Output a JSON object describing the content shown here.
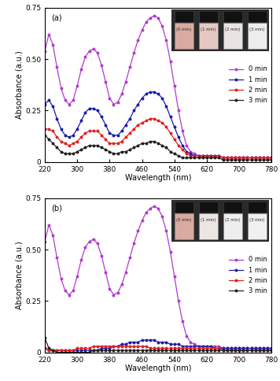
{
  "chart_data": [
    {
      "type": "line",
      "panel_label": "(a)",
      "x_label": "Wavelength (nm)",
      "y_label": "Absorbance (a.u.)",
      "inset_labels": [
        "(0 min)",
        "(1 min)",
        "(2 min)",
        "(3 min)"
      ],
      "x": [
        220,
        230,
        240,
        250,
        260,
        270,
        280,
        290,
        300,
        310,
        320,
        330,
        340,
        350,
        360,
        370,
        380,
        390,
        400,
        410,
        420,
        430,
        440,
        450,
        460,
        470,
        480,
        490,
        500,
        510,
        520,
        530,
        540,
        550,
        560,
        570,
        580,
        590,
        600,
        610,
        620,
        630,
        640,
        650,
        660,
        670,
        680,
        690,
        700,
        710,
        720,
        730,
        740,
        750,
        760,
        770,
        780
      ],
      "xlim": [
        220,
        780
      ],
      "xticks": [
        220,
        300,
        380,
        460,
        540,
        620,
        700,
        780
      ],
      "ylim": [
        0,
        0.75
      ],
      "yticks": [
        0,
        0.25,
        {
          "value": 0.5,
          "label": "0.50"
        },
        0.75
      ],
      "legend": "center right",
      "marker": "o",
      "line_style": "-",
      "series": [
        {
          "name": "0 min",
          "color": "#b03cc8",
          "values": [
            0.54,
            0.62,
            0.57,
            0.46,
            0.36,
            0.3,
            0.28,
            0.3,
            0.37,
            0.45,
            0.51,
            0.54,
            0.55,
            0.53,
            0.47,
            0.39,
            0.31,
            0.28,
            0.29,
            0.33,
            0.39,
            0.46,
            0.53,
            0.59,
            0.64,
            0.68,
            0.7,
            0.71,
            0.7,
            0.66,
            0.59,
            0.49,
            0.37,
            0.25,
            0.15,
            0.08,
            0.05,
            0.04,
            0.03,
            0.03,
            0.03,
            0.03,
            0.03,
            0.03,
            0.02,
            0.02,
            0.02,
            0.02,
            0.02,
            0.02,
            0.02,
            0.02,
            0.02,
            0.02,
            0.02,
            0.02,
            0.02
          ]
        },
        {
          "name": "1 min",
          "color": "#1c1ca8",
          "values": [
            0.28,
            0.3,
            0.27,
            0.21,
            0.16,
            0.13,
            0.12,
            0.13,
            0.16,
            0.2,
            0.24,
            0.26,
            0.26,
            0.25,
            0.22,
            0.18,
            0.14,
            0.13,
            0.13,
            0.15,
            0.18,
            0.21,
            0.25,
            0.28,
            0.31,
            0.33,
            0.34,
            0.34,
            0.33,
            0.31,
            0.27,
            0.22,
            0.17,
            0.12,
            0.08,
            0.05,
            0.04,
            0.03,
            0.03,
            0.03,
            0.03,
            0.03,
            0.03,
            0.03,
            0.02,
            0.02,
            0.02,
            0.02,
            0.02,
            0.02,
            0.02,
            0.02,
            0.02,
            0.02,
            0.02,
            0.02,
            0.02
          ]
        },
        {
          "name": "2 min",
          "color": "#e02020",
          "values": [
            0.16,
            0.16,
            0.15,
            0.12,
            0.1,
            0.09,
            0.08,
            0.09,
            0.1,
            0.12,
            0.14,
            0.15,
            0.15,
            0.15,
            0.13,
            0.11,
            0.09,
            0.09,
            0.09,
            0.1,
            0.12,
            0.14,
            0.16,
            0.18,
            0.19,
            0.2,
            0.21,
            0.21,
            0.2,
            0.19,
            0.17,
            0.14,
            0.11,
            0.08,
            0.06,
            0.04,
            0.03,
            0.03,
            0.03,
            0.03,
            0.03,
            0.03,
            0.03,
            0.03,
            0.02,
            0.02,
            0.02,
            0.02,
            0.02,
            0.02,
            0.02,
            0.02,
            0.02,
            0.02,
            0.02,
            0.02,
            0.02
          ]
        },
        {
          "name": "3 min",
          "color": "#202020",
          "values": [
            0.13,
            0.11,
            0.09,
            0.07,
            0.05,
            0.04,
            0.04,
            0.04,
            0.05,
            0.06,
            0.07,
            0.08,
            0.08,
            0.08,
            0.07,
            0.06,
            0.05,
            0.04,
            0.04,
            0.05,
            0.05,
            0.06,
            0.07,
            0.08,
            0.09,
            0.09,
            0.1,
            0.1,
            0.09,
            0.08,
            0.07,
            0.05,
            0.04,
            0.03,
            0.02,
            0.02,
            0.02,
            0.02,
            0.02,
            0.02,
            0.02,
            0.02,
            0.02,
            0.02,
            0.01,
            0.01,
            0.01,
            0.01,
            0.01,
            0.01,
            0.01,
            0.01,
            0.01,
            0.01,
            0.01,
            0.01,
            0.01
          ]
        }
      ]
    },
    {
      "type": "line",
      "panel_label": "(b)",
      "x_label": "Wavelength (nm)",
      "y_label": "Absorbance (a.u.)",
      "inset_labels": [
        "(0 min)",
        "(1 min)",
        "(2 min)",
        "(3 min)"
      ],
      "x": [
        220,
        230,
        240,
        250,
        260,
        270,
        280,
        290,
        300,
        310,
        320,
        330,
        340,
        350,
        360,
        370,
        380,
        390,
        400,
        410,
        420,
        430,
        440,
        450,
        460,
        470,
        480,
        490,
        500,
        510,
        520,
        530,
        540,
        550,
        560,
        570,
        580,
        590,
        600,
        610,
        620,
        630,
        640,
        650,
        660,
        670,
        680,
        690,
        700,
        710,
        720,
        730,
        740,
        750,
        760,
        770,
        780
      ],
      "xlim": [
        220,
        780
      ],
      "xticks": [
        220,
        300,
        380,
        460,
        540,
        620,
        700,
        780
      ],
      "ylim": [
        0,
        0.75
      ],
      "yticks": [
        0,
        0.25,
        {
          "value": 0.5,
          "label": "0.50"
        },
        0.75
      ],
      "legend": "center right",
      "marker": "o",
      "line_style": "-",
      "series": [
        {
          "name": "0 min",
          "color": "#b03cc8",
          "values": [
            0.54,
            0.62,
            0.57,
            0.46,
            0.36,
            0.3,
            0.28,
            0.3,
            0.37,
            0.45,
            0.51,
            0.54,
            0.55,
            0.53,
            0.47,
            0.39,
            0.31,
            0.28,
            0.29,
            0.33,
            0.39,
            0.46,
            0.53,
            0.59,
            0.64,
            0.68,
            0.7,
            0.71,
            0.7,
            0.66,
            0.59,
            0.49,
            0.37,
            0.25,
            0.15,
            0.08,
            0.05,
            0.04,
            0.03,
            0.03,
            0.03,
            0.03,
            0.03,
            0.03,
            0.02,
            0.02,
            0.02,
            0.02,
            0.02,
            0.02,
            0.02,
            0.02,
            0.02,
            0.02,
            0.02,
            0.02,
            0.02
          ]
        },
        {
          "name": "1 min",
          "color": "#1c1ca8",
          "values": [
            0.02,
            0.01,
            0.01,
            0.01,
            0.01,
            0.01,
            0.01,
            0.01,
            0.01,
            0.01,
            0.01,
            0.01,
            0.01,
            0.01,
            0.02,
            0.02,
            0.02,
            0.03,
            0.03,
            0.04,
            0.04,
            0.05,
            0.05,
            0.05,
            0.06,
            0.06,
            0.06,
            0.06,
            0.05,
            0.05,
            0.05,
            0.04,
            0.04,
            0.04,
            0.03,
            0.03,
            0.03,
            0.03,
            0.03,
            0.03,
            0.03,
            0.03,
            0.02,
            0.02,
            0.02,
            0.02,
            0.02,
            0.02,
            0.02,
            0.02,
            0.02,
            0.02,
            0.02,
            0.02,
            0.02,
            0.02,
            0.02
          ]
        },
        {
          "name": "2 min",
          "color": "#e02020",
          "values": [
            0.02,
            0.01,
            0.01,
            0.01,
            0.01,
            0.01,
            0.01,
            0.01,
            0.02,
            0.02,
            0.02,
            0.02,
            0.03,
            0.03,
            0.03,
            0.03,
            0.03,
            0.03,
            0.03,
            0.03,
            0.03,
            0.03,
            0.03,
            0.03,
            0.03,
            0.03,
            0.02,
            0.02,
            0.02,
            0.02,
            0.02,
            0.02,
            0.02,
            0.02,
            0.02,
            0.02,
            0.02,
            0.02,
            0.02,
            0.02,
            0.02,
            0.02,
            0.02,
            0.02,
            0.01,
            0.01,
            0.01,
            0.01,
            0.01,
            0.01,
            0.01,
            0.01,
            0.01,
            0.01,
            0.01,
            0.01,
            0.01
          ]
        },
        {
          "name": "3 min",
          "color": "#202020",
          "values": [
            0.07,
            0.02,
            0.01,
            0.0,
            0.0,
            0.0,
            0.0,
            0.0,
            0.0,
            0.0,
            0.0,
            0.0,
            0.01,
            0.01,
            0.01,
            0.01,
            0.01,
            0.01,
            0.01,
            0.01,
            0.01,
            0.01,
            0.01,
            0.01,
            0.01,
            0.01,
            0.01,
            0.01,
            0.01,
            0.01,
            0.01,
            0.01,
            0.01,
            0.01,
            0.01,
            0.01,
            0.01,
            0.01,
            0.01,
            0.01,
            0.01,
            0.01,
            0.01,
            0.01,
            0.01,
            0.01,
            0.01,
            0.01,
            0.01,
            0.01,
            0.01,
            0.01,
            0.01,
            0.01,
            0.01,
            0.01,
            0.01
          ]
        }
      ]
    }
  ]
}
